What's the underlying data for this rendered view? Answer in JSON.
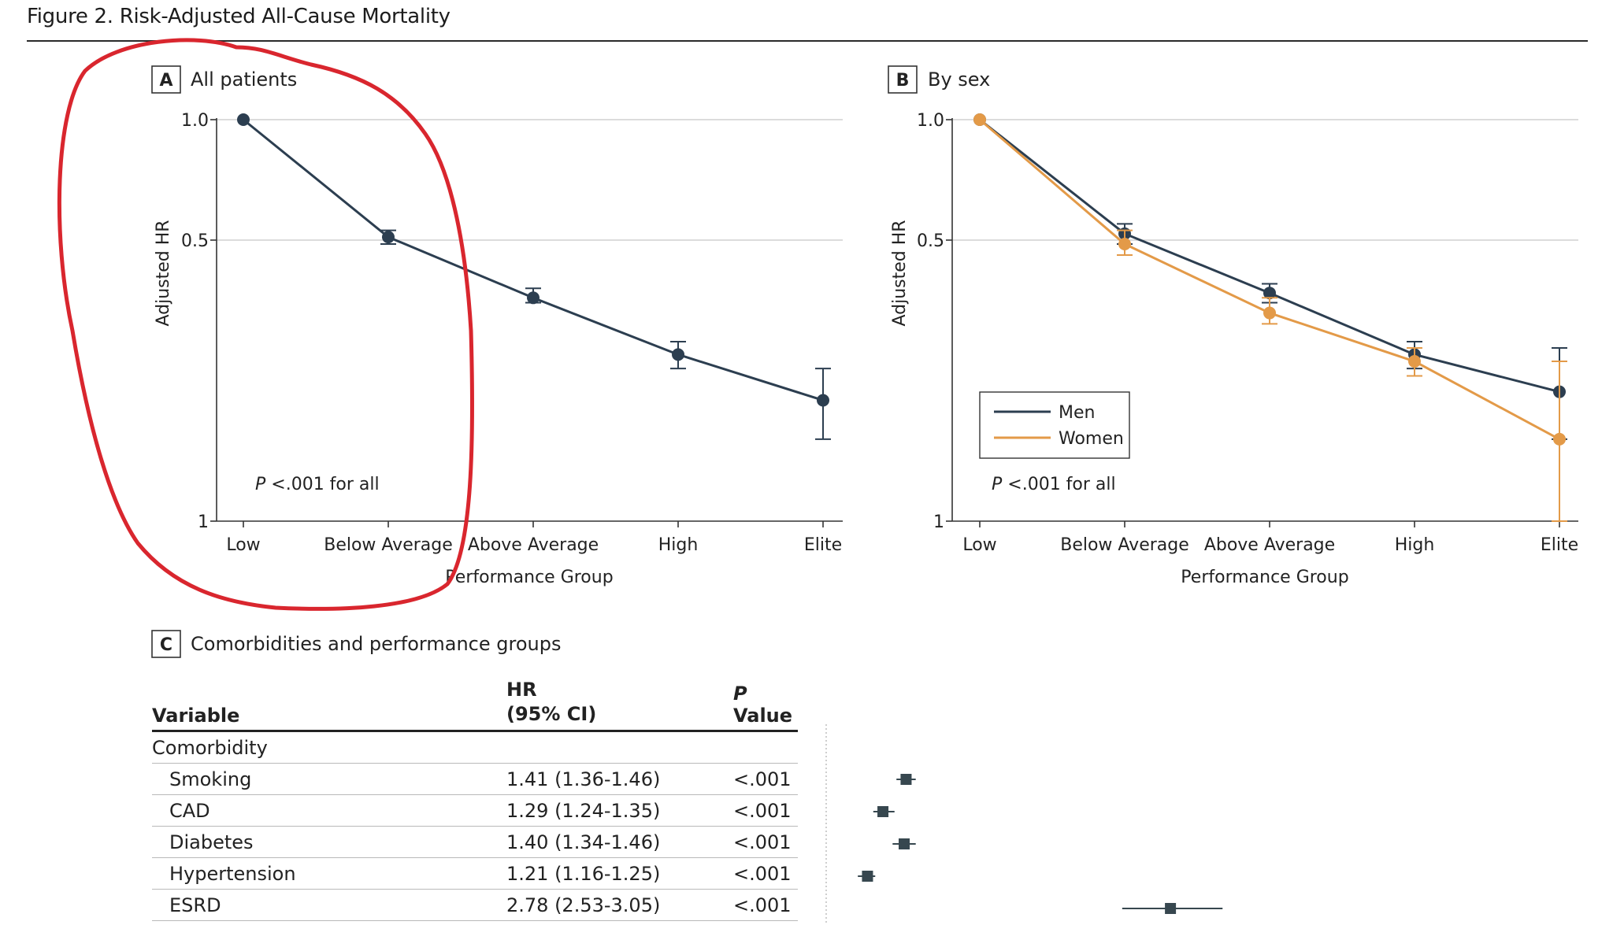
{
  "figure_title": "Figure 2. Risk-Adjusted All-Cause Mortality",
  "icons": {
    "annotation": "red-freehand-circle-icon"
  },
  "colors": {
    "men": "#2c3e50",
    "women": "#e39a48",
    "annotation": "#d9262e",
    "marker": "#37474f"
  },
  "chart_data": [
    {
      "type": "line",
      "panel_letter": "A",
      "title": "All patients",
      "xlabel": "Performance Group",
      "ylabel": "Adjusted HR",
      "categories": [
        "Low",
        "Below Average",
        "Above Average",
        "High",
        "Elite"
      ],
      "y_scale": "log",
      "y_ticks": [
        1.0,
        0.5,
        1
      ],
      "y_tick_labels": [
        "1.0",
        "0.5",
        "1"
      ],
      "ylim": [
        0.1,
        1.0
      ],
      "grid": true,
      "annotation": {
        "prefix": "P",
        "text": " <.001 for all"
      },
      "series": [
        {
          "values": [
            1.0,
            0.51,
            0.36,
            0.26,
            0.2
          ],
          "ci_low": [
            1.0,
            0.49,
            0.35,
            0.24,
            0.16
          ],
          "ci_high": [
            1.0,
            0.53,
            0.38,
            0.28,
            0.24
          ]
        }
      ]
    },
    {
      "type": "line",
      "panel_letter": "B",
      "title": "By sex",
      "xlabel": "Performance Group",
      "ylabel": "Adjusted HR",
      "categories": [
        "Low",
        "Below Average",
        "Above Average",
        "High",
        "Elite"
      ],
      "y_scale": "log",
      "y_ticks": [
        1.0,
        0.5,
        1
      ],
      "y_tick_labels": [
        "1.0",
        "0.5",
        "1"
      ],
      "ylim": [
        0.1,
        1.0
      ],
      "grid": true,
      "legend": "bottom-left",
      "annotation": {
        "prefix": "P",
        "text": " <.001 for all"
      },
      "series": [
        {
          "name": "Men",
          "values": [
            1.0,
            0.52,
            0.37,
            0.26,
            0.21
          ],
          "ci_low": [
            1.0,
            0.49,
            0.35,
            0.24,
            0.16
          ],
          "ci_high": [
            1.0,
            0.55,
            0.39,
            0.28,
            0.27
          ]
        },
        {
          "name": "Women",
          "values": [
            1.0,
            0.49,
            0.33,
            0.25,
            0.16
          ],
          "ci_low": [
            1.0,
            0.46,
            0.31,
            0.23,
            0.1
          ],
          "ci_high": [
            1.0,
            0.53,
            0.36,
            0.27,
            0.25
          ]
        }
      ]
    },
    {
      "type": "table",
      "panel_letter": "C",
      "title": "Comorbidities and performance groups",
      "columns": {
        "variable": "Variable",
        "hr_line1": "HR",
        "hr_line2": "(95% CI)",
        "p_prefix": "P",
        "p_rest": " Value"
      },
      "group_label": "Comorbidity",
      "rows": [
        {
          "variable": "Smoking",
          "hr_text": "1.41 (1.36-1.46)",
          "p": "<.001",
          "hr": 1.41,
          "lo": 1.36,
          "hi": 1.46
        },
        {
          "variable": "CAD",
          "hr_text": "1.29 (1.24-1.35)",
          "p": "<.001",
          "hr": 1.29,
          "lo": 1.24,
          "hi": 1.35
        },
        {
          "variable": "Diabetes",
          "hr_text": "1.40 (1.34-1.46)",
          "p": "<.001",
          "hr": 1.4,
          "lo": 1.34,
          "hi": 1.46
        },
        {
          "variable": "Hypertension",
          "hr_text": "1.21 (1.16-1.25)",
          "p": "<.001",
          "hr": 1.21,
          "lo": 1.16,
          "hi": 1.25
        },
        {
          "variable": "ESRD",
          "hr_text": "2.78 (2.53-3.05)",
          "p": "<.001",
          "hr": 2.78,
          "lo": 2.53,
          "hi": 3.05
        }
      ]
    }
  ]
}
